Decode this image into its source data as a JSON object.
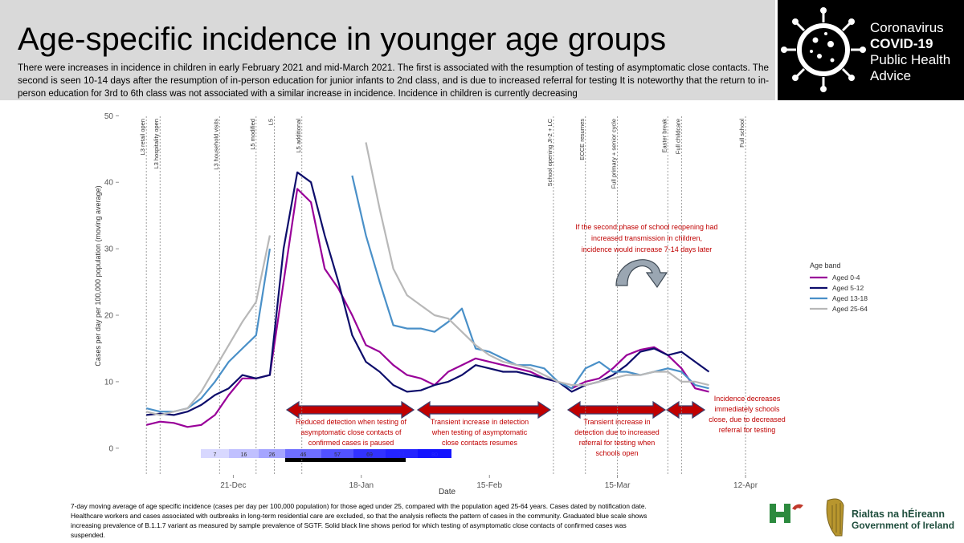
{
  "header": {
    "title": "Age-specific incidence in younger age groups",
    "description": [
      "There were increases in incidence in children in early February 2021 and mid-March 2021. The first is associated with the resumption of testing of asymptomatic close contacts. The",
      "second is seen 10-14 days after the resumption of in-person education for junior infants to 2nd class, and is due to increased referral for testing  It is noteworthy that the return to in-",
      "person education for 3rd to 6th class was not associated with a similar increase in incidence. Incidence in children is currently decreasing"
    ]
  },
  "logo": {
    "lines": [
      "Coronavirus",
      "COVID-19",
      "Public Health",
      "Advice"
    ]
  },
  "chart_data": {
    "type": "line",
    "x": [
      "2-Dec",
      "5-Dec",
      "8-Dec",
      "11-Dec",
      "14-Dec",
      "17-Dec",
      "20-Dec",
      "23-Dec",
      "26-Dec",
      "29-Dec",
      "1-Jan",
      "4-Jan",
      "7-Jan",
      "10-Jan",
      "13-Jan",
      "16-Jan",
      "19-Jan",
      "22-Jan",
      "25-Jan",
      "28-Jan",
      "31-Jan",
      "3-Feb",
      "6-Feb",
      "9-Feb",
      "12-Feb",
      "15-Feb",
      "18-Feb",
      "21-Feb",
      "24-Feb",
      "27-Feb",
      "2-Mar",
      "5-Mar",
      "8-Mar",
      "11-Mar",
      "14-Mar",
      "17-Mar",
      "20-Mar",
      "23-Mar",
      "26-Mar",
      "29-Mar",
      "1-Apr",
      "4-Apr"
    ],
    "series": [
      {
        "name": "Aged 0-4",
        "color": "#990099",
        "values": [
          3.5,
          4,
          3.8,
          3.2,
          3.5,
          5,
          8,
          10.5,
          10.5,
          11,
          25,
          39,
          37,
          27,
          24,
          20,
          15.5,
          14.5,
          12.5,
          11,
          10.5,
          9.5,
          11.5,
          12.5,
          13.5,
          13,
          12.5,
          12,
          11.5,
          10.5,
          10,
          9,
          10,
          10.5,
          12,
          14,
          14.8,
          15.2,
          14,
          12,
          9,
          8.5
        ]
      },
      {
        "name": "Aged 5-12",
        "color": "#0d0d6b",
        "values": [
          5,
          5.2,
          5,
          5.5,
          6.5,
          8,
          9,
          11,
          10.5,
          11,
          30,
          41.5,
          40,
          32,
          25,
          17,
          13,
          11.5,
          9.5,
          8.5,
          8.7,
          9.5,
          10,
          11,
          12.5,
          12,
          11.5,
          11.5,
          11,
          10.5,
          10,
          8.5,
          9.5,
          10,
          11,
          12.5,
          14.5,
          15,
          14,
          14.5,
          13,
          11.5
        ]
      },
      {
        "name": "Aged 13-18",
        "color": "#4a90c8",
        "values": [
          6,
          5.5,
          5.5,
          6,
          7.5,
          10,
          13,
          15,
          17,
          30,
          null,
          null,
          null,
          null,
          null,
          41,
          32,
          25,
          18.5,
          18,
          18,
          17.5,
          19,
          21,
          15,
          14.5,
          13.5,
          12.5,
          12.5,
          12,
          10,
          9,
          12,
          13,
          11.5,
          11.5,
          11,
          11.5,
          12,
          11.5,
          9.5,
          9
        ]
      },
      {
        "name": "Aged 25-64",
        "color": "#b8b8b8",
        "values": [
          5.5,
          5,
          5.5,
          6,
          8.5,
          12,
          15.5,
          19,
          22,
          32,
          null,
          null,
          null,
          null,
          null,
          null,
          46,
          36,
          27,
          23,
          21.5,
          20,
          19.5,
          17.5,
          15.5,
          14,
          13,
          12.5,
          12,
          11,
          10,
          9.5,
          9.5,
          10,
          10.5,
          11,
          11,
          11.5,
          11.5,
          10,
          10,
          9.5
        ]
      }
    ],
    "xlim": [
      "26-Nov",
      "22-Apr"
    ],
    "xticks": [
      "21-Dec",
      "18-Jan",
      "15-Feb",
      "15-Mar",
      "12-Apr"
    ],
    "ylim": [
      -4,
      51
    ],
    "yticks": [
      0,
      10,
      20,
      30,
      40,
      50
    ],
    "x_label": "Date",
    "y_label": "Cases per day per 100,000 population (moving average)",
    "legend_title": "Age band",
    "events": [
      {
        "label": "L3 retail open",
        "x": "2-Dec"
      },
      {
        "label": "L3 hospitality open",
        "x": "5-Dec"
      },
      {
        "label": "L3 household visits",
        "x": "18-Dec"
      },
      {
        "label": "L5 modified",
        "x": "26-Dec"
      },
      {
        "label": "L5",
        "x": "30-Dec"
      },
      {
        "label": "L5 additional",
        "x": "5-Jan"
      },
      {
        "label": "School opening JI-2 + LC",
        "x": "1-Mar"
      },
      {
        "label": "ECCE resumes",
        "x": "8-Mar"
      },
      {
        "label": "Full primary + senior cycle",
        "x": "15-Mar"
      },
      {
        "label": "Easter break",
        "x": "26-Mar"
      },
      {
        "label": "Full childcare",
        "x": "29-Mar"
      },
      {
        "label": "Full school",
        "x": "12-Apr"
      }
    ],
    "prevalence": [
      7,
      16,
      26,
      46,
      57,
      69,
      74,
      80
    ]
  },
  "annotations": {
    "counterfactual": [
      "If the second phase of school reopening had",
      "increased transmission in children,",
      "incidence would increase 7-14 days later"
    ],
    "arrows": [
      [
        "Reduced detection when testing of",
        "asymptomatic close contacts of",
        "confirmed cases is paused"
      ],
      [
        "Transient increase in detection",
        "when testing of asymptomatic",
        "close contacts resumes"
      ],
      [
        "Transient increase in",
        "detection due to increased",
        "referral for testing when",
        "schools open"
      ],
      [
        "Incidence decreases",
        "immediately schools",
        "close, due to decreased",
        "referral for testing"
      ]
    ]
  },
  "footer": {
    "lines": [
      "7-day moving average of age specific incidence (cases per day per 100,000 population) for those aged under 25, compared with the population aged 25-64 years. Cases dated by notification date.",
      "Healthcare workers and cases associated with outbreaks in long-term residential care are excluded, so that the analysis reflects the pattern of cases in the community. Graduated blue scale shows",
      "increasing prevalence of B.1.1.7 variant as measured by sample prevalence of SGTF. Solid  black line shows period for which testing of asymptomatic close contacts of confirmed cases was",
      "suspended."
    ]
  },
  "government": {
    "lines": [
      "Rialtas na hÉireann",
      "Government of Ireland"
    ]
  }
}
